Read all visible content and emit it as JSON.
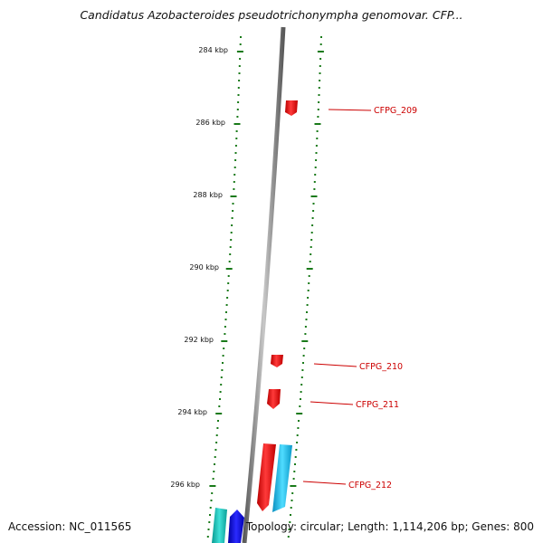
{
  "title": "Candidatus Azobacteroides pseudotrichonympha genomovar. CFP...",
  "footer": {
    "accession": "Accession: NC_011565",
    "summary": "Topology: circular; Length: 1,114,206 bp; Genes: 800"
  },
  "scale": {
    "unit": "kbp",
    "labels": [
      "284 kbp",
      "286 kbp",
      "288 kbp",
      "290 kbp",
      "292 kbp",
      "294 kbp",
      "296 kbp"
    ]
  },
  "colors": {
    "backbone": "#8a8a8a",
    "ticks": "#1a7a1a",
    "gene_forward": "#ff1a1a",
    "gene_reverse_light": "#1ec8f0",
    "gene_teal": "#1fc8c0",
    "gene_blue": "#1010ee",
    "label_text": "#cc0000"
  },
  "genes": [
    {
      "label": "CFPG_209"
    },
    {
      "label": "CFPG_210"
    },
    {
      "label": "CFPG_211"
    },
    {
      "label": "CFPG_212"
    }
  ]
}
